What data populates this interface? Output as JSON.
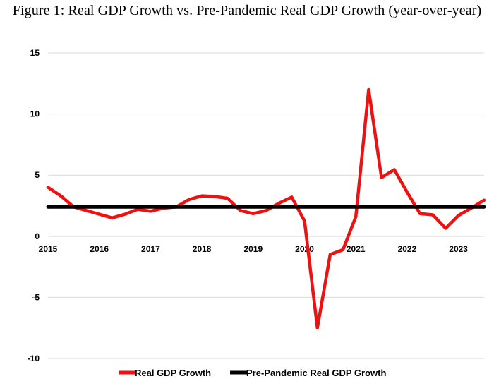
{
  "figure": {
    "title": "Figure 1: Real GDP Growth vs. Pre-Pandemic Real GDP Growth (year-over-year)"
  },
  "colors": {
    "real_gdp": "#ee1111",
    "pre_pandemic": "#000000",
    "gridline": "#d9d9d9"
  },
  "chart_data": {
    "type": "line",
    "title": "Figure 1: Real GDP Growth vs. Pre-Pandemic Real GDP Growth (year-over-year)",
    "xlabel": "",
    "ylabel": "",
    "ylim": [
      -10,
      15
    ],
    "xlim": [
      2015.0,
      2023.5
    ],
    "yticks": [
      15,
      10,
      5,
      0,
      -5,
      -10
    ],
    "ytick_labels": [
      "15",
      "10",
      "5",
      "0",
      "-5",
      "-10"
    ],
    "xticks": [
      2015,
      2016,
      2017,
      2018,
      2019,
      2020,
      2021,
      2022,
      2023
    ],
    "xtick_labels": [
      "2015",
      "2016",
      "2017",
      "2018",
      "2019",
      "2020",
      "2021",
      "2022",
      "2023"
    ],
    "grid": true,
    "legend_position": "bottom",
    "series": [
      {
        "name": "Real GDP Growth",
        "color": "#ee1111",
        "x": [
          2015.0,
          2015.25,
          2015.5,
          2015.75,
          2016.0,
          2016.25,
          2016.5,
          2016.75,
          2017.0,
          2017.25,
          2017.5,
          2017.75,
          2018.0,
          2018.25,
          2018.5,
          2018.75,
          2019.0,
          2019.25,
          2019.5,
          2019.75,
          2020.0,
          2020.25,
          2020.5,
          2020.75,
          2021.0,
          2021.25,
          2021.5,
          2021.75,
          2022.0,
          2022.25,
          2022.5,
          2022.75,
          2023.0,
          2023.25,
          2023.5
        ],
        "values": [
          4.0,
          3.3,
          2.4,
          2.1,
          1.8,
          1.5,
          1.8,
          2.2,
          2.05,
          2.3,
          2.4,
          3.0,
          3.3,
          3.25,
          3.1,
          2.1,
          1.85,
          2.1,
          2.7,
          3.2,
          1.25,
          -7.5,
          -1.5,
          -1.1,
          1.6,
          12.0,
          4.8,
          5.45,
          3.6,
          1.85,
          1.75,
          0.65,
          1.7,
          2.3,
          2.95
        ]
      },
      {
        "name": "Pre-Pandemic Real GDP Growth",
        "color": "#000000",
        "x": [
          2015.0,
          2023.5
        ],
        "values": [
          2.4,
          2.4
        ]
      }
    ]
  }
}
